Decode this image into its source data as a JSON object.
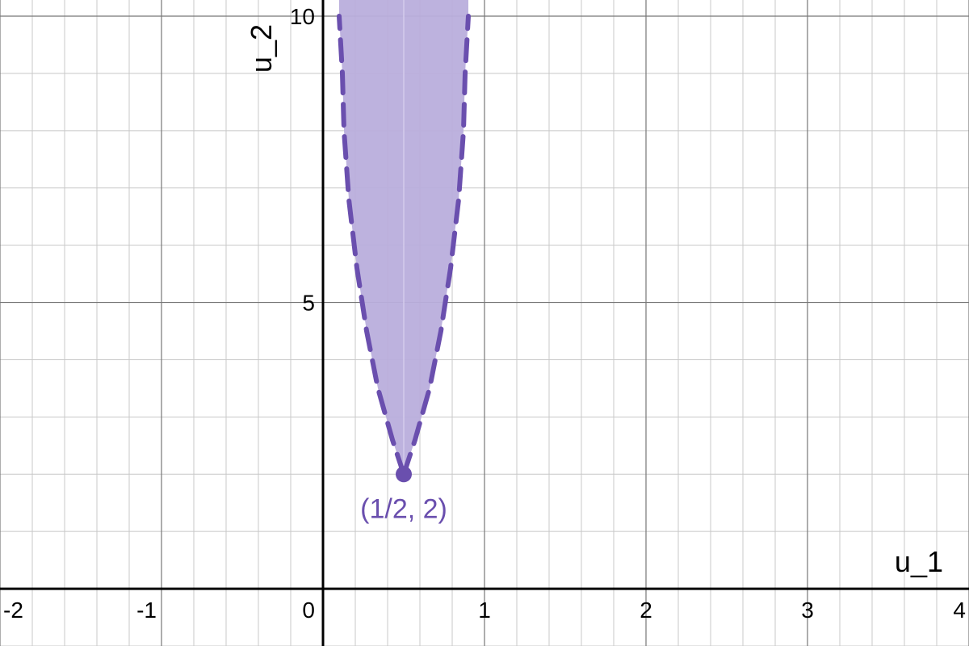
{
  "chart_data": {
    "type": "area",
    "xlabel": "u_1",
    "ylabel": "u_2",
    "xlim": [
      -2,
      4
    ],
    "ylim": [
      -1,
      10
    ],
    "x_ticks": [
      -2,
      -1,
      0,
      1,
      2,
      3,
      4
    ],
    "x_tick_labels": [
      "-2",
      "-1",
      "0",
      "1",
      "2",
      "3",
      "4"
    ],
    "y_ticks": [
      5,
      10
    ],
    "y_tick_labels": [
      "5",
      "10"
    ],
    "grid": true,
    "minor_grid": true,
    "region": {
      "description": "shaded region between two dashed boundary curves, open upward",
      "boundary_style": "dashed",
      "left_boundary": [
        {
          "x": 0.5,
          "y": 2
        },
        {
          "x": 0.43,
          "y": 2.6
        },
        {
          "x": 0.34,
          "y": 3.5
        },
        {
          "x": 0.27,
          "y": 4.5
        },
        {
          "x": 0.21,
          "y": 5.6
        },
        {
          "x": 0.16,
          "y": 6.8
        },
        {
          "x": 0.13,
          "y": 8.0
        },
        {
          "x": 0.12,
          "y": 9.0
        },
        {
          "x": 0.1,
          "y": 10.0
        }
      ],
      "right_boundary": [
        {
          "x": 0.5,
          "y": 2
        },
        {
          "x": 0.57,
          "y": 2.6
        },
        {
          "x": 0.66,
          "y": 3.5
        },
        {
          "x": 0.73,
          "y": 4.5
        },
        {
          "x": 0.79,
          "y": 5.6
        },
        {
          "x": 0.84,
          "y": 6.8
        },
        {
          "x": 0.87,
          "y": 8.0
        },
        {
          "x": 0.88,
          "y": 9.0
        },
        {
          "x": 0.9,
          "y": 10.0
        }
      ]
    },
    "points": [
      {
        "x": 0.5,
        "y": 2,
        "label": "(1/2, 2)"
      }
    ],
    "colors": {
      "region_fill": "#b9aedc",
      "boundary": "#6a4fae",
      "point": "#6a4fae",
      "axis": "#000000",
      "grid_major": "#777777",
      "grid_minor": "#c8c8c8"
    }
  }
}
